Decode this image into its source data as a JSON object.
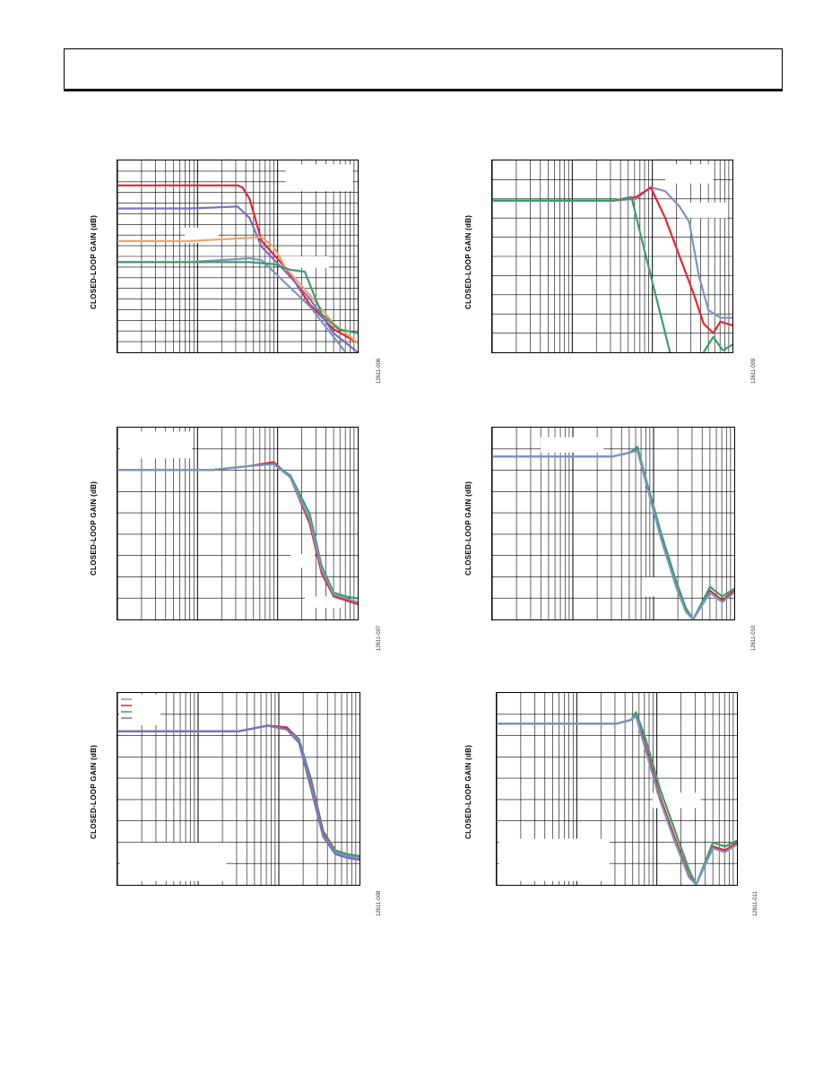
{
  "page": {
    "header_box": ""
  },
  "colors": {
    "red": "#e0282e",
    "blue_purple": "#7b6fc0",
    "orange": "#f2a36e",
    "slate_blue": "#7b95c3",
    "green": "#3c9d6a",
    "grid": "#000000"
  },
  "chart_data": [
    {
      "id": "panel-top-left",
      "type": "line",
      "ylabel": "CLOSED-LOOP GAIN (dB)",
      "fig_id": "12611-006",
      "xscale": "log",
      "xdecades": 3,
      "ygrid_lines": 18,
      "blank_label_boxes": 3,
      "series": [
        {
          "color": "red",
          "x": [
            0.0,
            0.3,
            0.5,
            0.52,
            0.55,
            0.6,
            0.7,
            0.8,
            0.9,
            1.0
          ],
          "y": [
            0.87,
            0.87,
            0.87,
            0.86,
            0.8,
            0.58,
            0.44,
            0.25,
            0.12,
            0.05
          ]
        },
        {
          "color": "blue_purple",
          "x": [
            0.0,
            0.3,
            0.5,
            0.55,
            0.6,
            0.7,
            0.8,
            0.9,
            1.0
          ],
          "y": [
            0.75,
            0.75,
            0.76,
            0.7,
            0.55,
            0.42,
            0.28,
            0.1,
            0.0
          ]
        },
        {
          "color": "orange",
          "x": [
            0.0,
            0.3,
            0.6,
            0.65,
            0.7,
            0.8,
            0.9,
            1.0
          ],
          "y": [
            0.58,
            0.58,
            0.6,
            0.55,
            0.44,
            0.3,
            0.15,
            0.05
          ]
        },
        {
          "color": "slate_blue",
          "x": [
            0.0,
            0.3,
            0.55,
            0.6,
            0.65,
            0.7,
            0.8,
            0.9,
            0.95
          ],
          "y": [
            0.47,
            0.47,
            0.49,
            0.48,
            0.42,
            0.36,
            0.24,
            0.08,
            0.0
          ]
        },
        {
          "color": "green",
          "x": [
            0.0,
            0.3,
            0.55,
            0.65,
            0.72,
            0.78,
            0.85,
            0.92,
            1.0
          ],
          "y": [
            0.47,
            0.47,
            0.47,
            0.46,
            0.43,
            0.42,
            0.2,
            0.12,
            0.1
          ]
        }
      ]
    },
    {
      "id": "panel-top-right",
      "type": "line",
      "ylabel": "CLOSED-LOOP GAIN (dB)",
      "fig_id": "12611-009",
      "xscale": "log",
      "xdecades": 3,
      "ygrid_lines": 10,
      "blank_label_boxes": 2,
      "series": [
        {
          "color": "slate_blue",
          "x": [
            0.0,
            0.5,
            0.6,
            0.66,
            0.72,
            0.78,
            0.82,
            0.86,
            0.9,
            0.95,
            1.0
          ],
          "y": [
            0.79,
            0.79,
            0.8,
            0.86,
            0.84,
            0.76,
            0.68,
            0.4,
            0.22,
            0.18,
            0.18
          ]
        },
        {
          "color": "red",
          "x": [
            0.0,
            0.5,
            0.6,
            0.66,
            0.72,
            0.78,
            0.84,
            0.88,
            0.92,
            0.95,
            1.0
          ],
          "y": [
            0.79,
            0.79,
            0.81,
            0.86,
            0.7,
            0.5,
            0.3,
            0.15,
            0.1,
            0.16,
            0.14
          ]
        },
        {
          "color": "green",
          "x": [
            0.0,
            0.5,
            0.58,
            0.62,
            0.67,
            0.72,
            0.75,
            0.78
          ],
          "y": [
            0.79,
            0.79,
            0.81,
            0.6,
            0.35,
            0.1,
            -0.05,
            -0.2
          ]
        },
        {
          "color": "green",
          "x": [
            0.88,
            0.92,
            0.96,
            1.0
          ],
          "y": [
            0.0,
            0.08,
            0.01,
            0.04
          ]
        }
      ]
    },
    {
      "id": "panel-mid-left",
      "type": "line",
      "ylabel": "CLOSED-LOOP GAIN (dB)",
      "fig_id": "12611-007",
      "xscale": "log",
      "xdecades": 3,
      "ygrid_lines": 9,
      "blank_label_boxes": 3,
      "series": [
        {
          "color": "red",
          "x": [
            0.0,
            0.4,
            0.55,
            0.65,
            0.72,
            0.8,
            0.85,
            0.9,
            0.95,
            1.0
          ],
          "y": [
            0.78,
            0.78,
            0.8,
            0.82,
            0.74,
            0.5,
            0.24,
            0.12,
            0.1,
            0.08
          ]
        },
        {
          "color": "green",
          "x": [
            0.0,
            0.4,
            0.55,
            0.65,
            0.72,
            0.8,
            0.85,
            0.9,
            0.95,
            1.0
          ],
          "y": [
            0.78,
            0.78,
            0.8,
            0.81,
            0.75,
            0.55,
            0.28,
            0.14,
            0.12,
            0.11
          ]
        },
        {
          "color": "slate_blue",
          "x": [
            0.0,
            0.4,
            0.55,
            0.65,
            0.72,
            0.8,
            0.85,
            0.9,
            0.95,
            1.0
          ],
          "y": [
            0.78,
            0.78,
            0.8,
            0.81,
            0.74,
            0.52,
            0.26,
            0.13,
            0.11,
            0.09
          ]
        }
      ]
    },
    {
      "id": "panel-mid-right",
      "type": "line",
      "ylabel": "CLOSED-LOOP GAIN (dB)",
      "fig_id": "12611-010",
      "xscale": "log",
      "xdecades": 3,
      "ygrid_lines": 9,
      "blank_label_boxes": 2,
      "series": [
        {
          "color": "red",
          "x": [
            0.0,
            0.5,
            0.57,
            0.6,
            0.64,
            0.7,
            0.76,
            0.8,
            0.83,
            0.9,
            0.95,
            1.0
          ],
          "y": [
            0.85,
            0.85,
            0.87,
            0.89,
            0.7,
            0.42,
            0.18,
            0.05,
            0.0,
            0.15,
            0.1,
            0.15
          ]
        },
        {
          "color": "green",
          "x": [
            0.0,
            0.5,
            0.57,
            0.6,
            0.64,
            0.7,
            0.76,
            0.8,
            0.83,
            0.9,
            0.95,
            1.0
          ],
          "y": [
            0.85,
            0.85,
            0.87,
            0.9,
            0.71,
            0.44,
            0.2,
            0.06,
            0.0,
            0.17,
            0.12,
            0.16
          ]
        },
        {
          "color": "slate_blue",
          "x": [
            0.0,
            0.5,
            0.57,
            0.6,
            0.64,
            0.7,
            0.76,
            0.8,
            0.83,
            0.9,
            0.95,
            1.0
          ],
          "y": [
            0.85,
            0.85,
            0.87,
            0.88,
            0.69,
            0.41,
            0.17,
            0.04,
            0.0,
            0.14,
            0.09,
            0.14
          ]
        }
      ]
    },
    {
      "id": "panel-bot-left",
      "type": "line",
      "ylabel": "CLOSED-LOOP GAIN (dB)",
      "fig_id": "12611-008",
      "xscale": "log",
      "xdecades": 3,
      "ygrid_lines": 9,
      "blank_label_boxes": 1,
      "legend_swatches": [
        "slate_blue",
        "red",
        "green",
        "blue_purple"
      ],
      "series": [
        {
          "color": "green",
          "x": [
            0.0,
            0.5,
            0.62,
            0.7,
            0.75,
            0.8,
            0.85,
            0.9,
            0.95,
            1.0
          ],
          "y": [
            0.8,
            0.8,
            0.83,
            0.82,
            0.76,
            0.55,
            0.28,
            0.18,
            0.16,
            0.15
          ]
        },
        {
          "color": "red",
          "x": [
            0.0,
            0.5,
            0.62,
            0.7,
            0.75,
            0.8,
            0.85,
            0.9,
            0.95,
            1.0
          ],
          "y": [
            0.8,
            0.8,
            0.83,
            0.82,
            0.75,
            0.53,
            0.27,
            0.17,
            0.15,
            0.14
          ]
        },
        {
          "color": "slate_blue",
          "x": [
            0.0,
            0.5,
            0.62,
            0.7,
            0.75,
            0.8,
            0.85,
            0.9,
            0.95,
            1.0
          ],
          "y": [
            0.8,
            0.8,
            0.83,
            0.81,
            0.75,
            0.52,
            0.26,
            0.17,
            0.15,
            0.14
          ]
        },
        {
          "color": "blue_purple",
          "x": [
            0.0,
            0.5,
            0.62,
            0.7,
            0.75,
            0.8,
            0.85,
            0.9,
            0.95,
            1.0
          ],
          "y": [
            0.8,
            0.8,
            0.83,
            0.81,
            0.74,
            0.5,
            0.25,
            0.16,
            0.14,
            0.13
          ]
        }
      ]
    },
    {
      "id": "panel-bot-right",
      "type": "line",
      "ylabel": "CLOSED-LOOP GAIN (dB)",
      "fig_id": "12611-011",
      "xscale": "log",
      "xdecades": 3,
      "ygrid_lines": 9,
      "blank_label_boxes": 2,
      "series": [
        {
          "color": "red",
          "x": [
            0.0,
            0.5,
            0.56,
            0.58,
            0.62,
            0.68,
            0.74,
            0.8,
            0.83,
            0.9,
            0.95,
            1.0
          ],
          "y": [
            0.84,
            0.84,
            0.86,
            0.89,
            0.72,
            0.46,
            0.25,
            0.05,
            0.0,
            0.2,
            0.18,
            0.22
          ]
        },
        {
          "color": "green",
          "x": [
            0.0,
            0.5,
            0.56,
            0.58,
            0.62,
            0.68,
            0.74,
            0.8,
            0.83,
            0.9,
            0.95,
            1.0
          ],
          "y": [
            0.84,
            0.84,
            0.86,
            0.9,
            0.76,
            0.5,
            0.29,
            0.08,
            0.0,
            0.22,
            0.2,
            0.23
          ]
        },
        {
          "color": "slate_blue",
          "x": [
            0.0,
            0.5,
            0.56,
            0.58,
            0.62,
            0.68,
            0.74,
            0.8,
            0.83,
            0.9,
            0.95,
            1.0
          ],
          "y": [
            0.84,
            0.84,
            0.86,
            0.88,
            0.7,
            0.44,
            0.23,
            0.04,
            0.0,
            0.19,
            0.17,
            0.21
          ]
        }
      ]
    }
  ]
}
